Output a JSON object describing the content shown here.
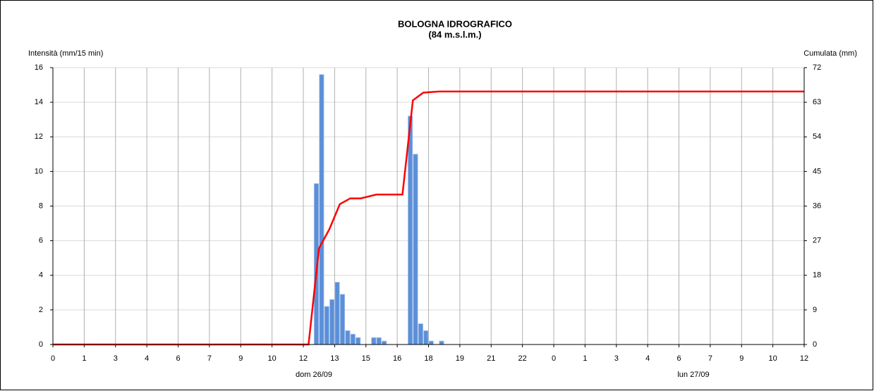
{
  "chart_data": {
    "type": "bar",
    "title": "BOLOGNA IDROGRAFICO",
    "subtitle": "(84 m.s.l.m.)",
    "y_label": "Intensità (mm/15 min)",
    "y2_label": "Cumulata (mm)",
    "annotations": [
      "dom 26/09",
      "lun 27/09"
    ],
    "xlim": [
      0,
      36
    ],
    "xticks": [
      0,
      {
        "value": 1.5,
        "label": "1"
      },
      3,
      {
        "value": 4.5,
        "label": "4"
      },
      6,
      {
        "value": 7.5,
        "label": "7"
      },
      9,
      {
        "value": 10.5,
        "label": "10"
      },
      12,
      {
        "value": 13.5,
        "label": "13"
      },
      15,
      {
        "value": 16.5,
        "label": "16"
      },
      18,
      {
        "value": 19.5,
        "label": "19"
      },
      21,
      {
        "value": 22.5,
        "label": "22"
      },
      {
        "value": 24,
        "label": "0"
      },
      {
        "value": 25.5,
        "label": "1"
      },
      {
        "value": 27,
        "label": "3"
      },
      {
        "value": 28.5,
        "label": "4"
      },
      {
        "value": 30,
        "label": "6"
      },
      {
        "value": 31.5,
        "label": "7"
      },
      {
        "value": 33,
        "label": "9"
      },
      {
        "value": 34.5,
        "label": "10"
      },
      {
        "value": 36,
        "label": "12"
      }
    ],
    "ylim": [
      0,
      16
    ],
    "yticks": [
      0,
      2,
      4,
      6,
      8,
      10,
      12,
      14,
      16
    ],
    "y2lim": [
      0,
      72
    ],
    "y2ticks": [
      0,
      9,
      18,
      27,
      36,
      45,
      54,
      63,
      72
    ],
    "grid": true,
    "series": [
      {
        "type": "bar",
        "color": "#5b8fd8",
        "x": [
          12.5,
          12.75,
          13,
          13.25,
          13.5,
          13.75,
          14,
          14.25,
          14.5,
          15.25,
          15.5,
          15.75,
          17,
          17.25,
          17.5,
          17.75,
          18,
          18.5
        ],
        "values": [
          9.3,
          15.6,
          2.2,
          2.6,
          3.6,
          2.9,
          0.8,
          0.6,
          0.4,
          0.4,
          0.4,
          0.2,
          13.2,
          11,
          1.2,
          0.8,
          0.2,
          0.2
        ]
      },
      {
        "type": "line",
        "axis": "y2",
        "color": "#ff0000",
        "x": [
          0,
          12.25,
          12.75,
          13.25,
          13.75,
          14.25,
          14.75,
          15.5,
          16.75,
          17.25,
          17.75,
          18.5,
          36
        ],
        "values": [
          0,
          0,
          25,
          30,
          36.5,
          38,
          38,
          39,
          39,
          63.5,
          65.5,
          65.8,
          65.8
        ]
      }
    ]
  }
}
